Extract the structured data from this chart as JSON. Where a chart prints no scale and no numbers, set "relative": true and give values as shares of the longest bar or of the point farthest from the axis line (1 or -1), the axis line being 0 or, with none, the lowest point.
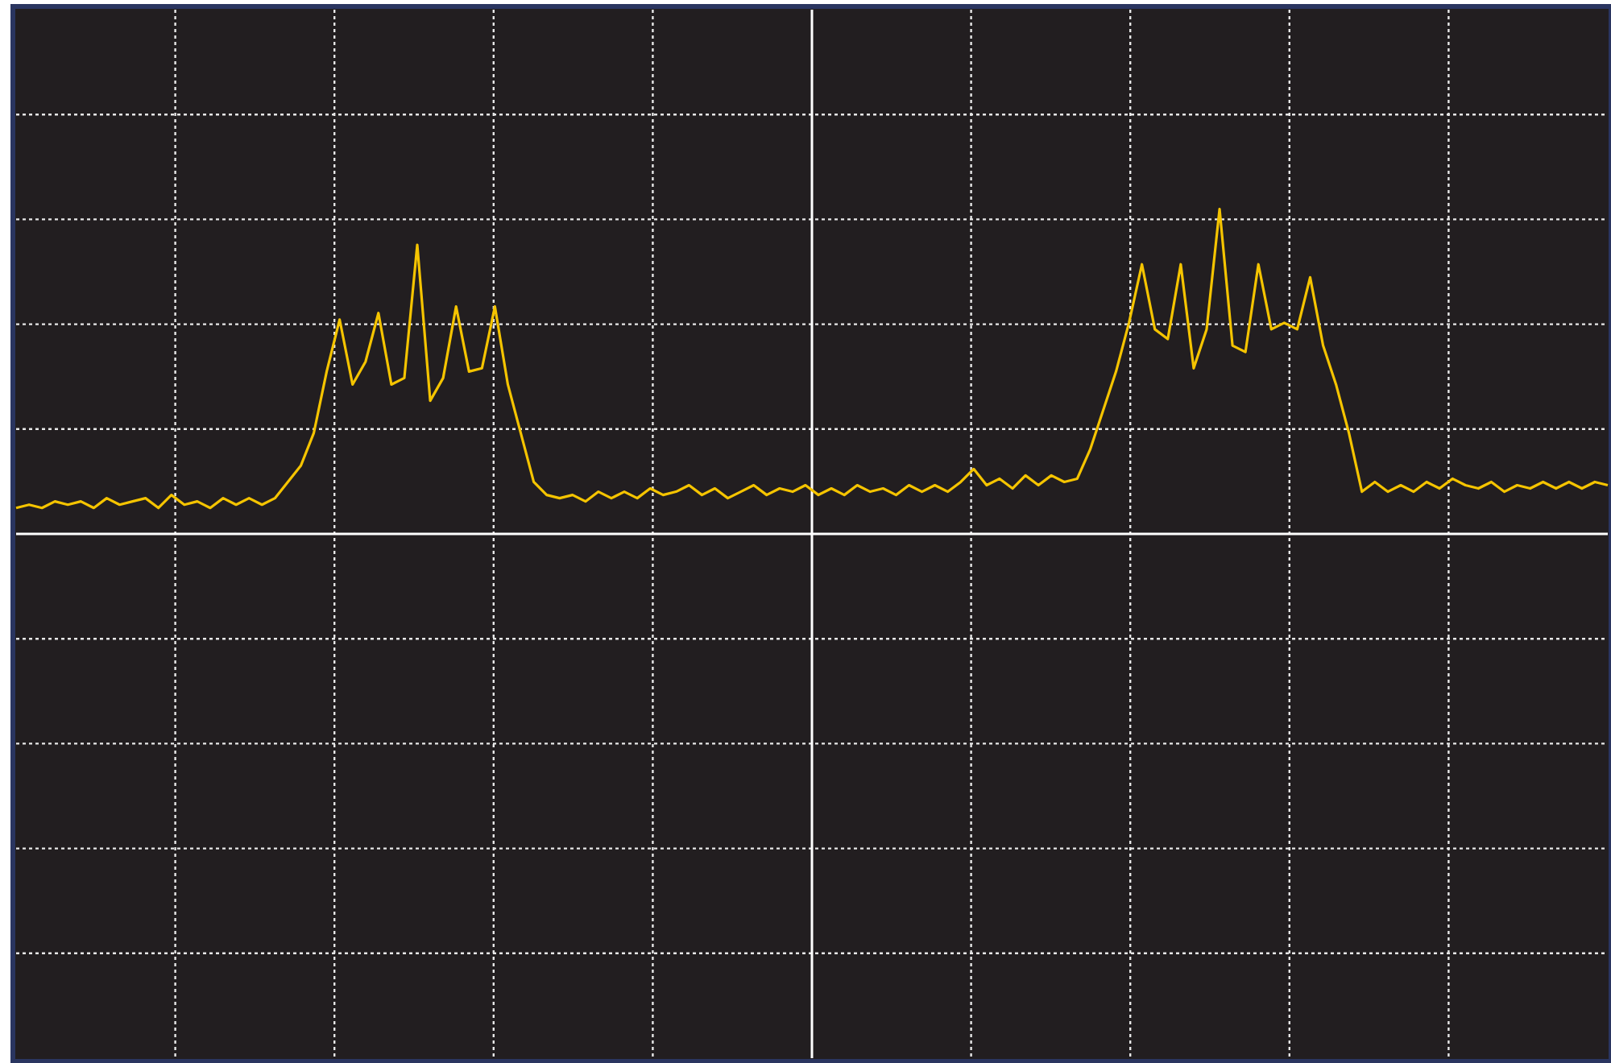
{
  "chart_data": {
    "type": "line",
    "relative": true,
    "grid": true,
    "categories": [
      null,
      null,
      null,
      null,
      null,
      null,
      null,
      null,
      null,
      null,
      null,
      null,
      null,
      null,
      null,
      null,
      null,
      null,
      null,
      null,
      null,
      null,
      null,
      null,
      null,
      null,
      null,
      null,
      null,
      null,
      null,
      null,
      null,
      null,
      null,
      null,
      null,
      null,
      null,
      null,
      null,
      null,
      null,
      null,
      null,
      null,
      null,
      null,
      null,
      null,
      null,
      null,
      null,
      null,
      null,
      null,
      null,
      null,
      null,
      null,
      null,
      null,
      null,
      null,
      null,
      null,
      null,
      null,
      null,
      null,
      null,
      null,
      null,
      null,
      null,
      null,
      null,
      null,
      null,
      null,
      null,
      null,
      null,
      null,
      null,
      null,
      null,
      null,
      null,
      null,
      null,
      null,
      null,
      null,
      null,
      null,
      null,
      null,
      null,
      null,
      null,
      null,
      null,
      null,
      null,
      null,
      null,
      null,
      null,
      null,
      null,
      null,
      null,
      null,
      null,
      null,
      null,
      null,
      null,
      null,
      null,
      null,
      null,
      null
    ],
    "series": [
      {
        "color": "#f5c400",
        "values": [
          0.08,
          0.09,
          0.08,
          0.1,
          0.09,
          0.1,
          0.08,
          0.11,
          0.09,
          0.1,
          0.11,
          0.08,
          0.12,
          0.09,
          0.1,
          0.08,
          0.11,
          0.09,
          0.11,
          0.09,
          0.11,
          0.16,
          0.21,
          0.31,
          0.5,
          0.66,
          0.46,
          0.53,
          0.68,
          0.46,
          0.48,
          0.89,
          0.41,
          0.48,
          0.7,
          0.5,
          0.51,
          0.7,
          0.46,
          0.31,
          0.16,
          0.12,
          0.11,
          0.12,
          0.1,
          0.13,
          0.11,
          0.13,
          0.11,
          0.14,
          0.12,
          0.13,
          0.15,
          0.12,
          0.14,
          0.11,
          0.13,
          0.15,
          0.12,
          0.14,
          0.13,
          0.15,
          0.12,
          0.14,
          0.12,
          0.15,
          0.13,
          0.14,
          0.12,
          0.15,
          0.13,
          0.15,
          0.13,
          0.16,
          0.2,
          0.15,
          0.17,
          0.14,
          0.18,
          0.15,
          0.18,
          0.16,
          0.17,
          0.26,
          0.38,
          0.5,
          0.65,
          0.83,
          0.63,
          0.6,
          0.83,
          0.51,
          0.63,
          1,
          0.58,
          0.56,
          0.83,
          0.63,
          0.65,
          0.63,
          0.79,
          0.58,
          0.46,
          0.31,
          0.13,
          0.16,
          0.13,
          0.15,
          0.13,
          0.16,
          0.14,
          0.17,
          0.15,
          0.14,
          0.16,
          0.13,
          0.15,
          0.14,
          0.16,
          0.14,
          0.16,
          0.14,
          0.16,
          0.15
        ]
      }
    ]
  }
}
